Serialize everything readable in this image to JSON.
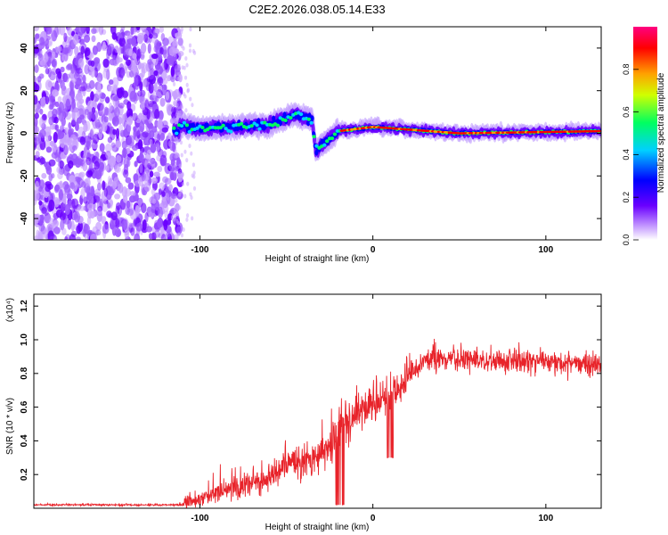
{
  "title": "C2E2.2026.038.05.14.E33",
  "chart_data": [
    {
      "type": "heatmap",
      "xlabel": "Height of straight line (km)",
      "ylabel": "Frequency (Hz)",
      "xlim": [
        -196,
        132
      ],
      "ylim": [
        -50,
        50
      ],
      "xticks": [
        -100,
        0,
        100
      ],
      "xtick_labels": [
        "-100",
        "0",
        "100"
      ],
      "yticks": [
        -40,
        -20,
        0,
        20,
        40
      ],
      "ytick_labels": [
        "-40",
        "-20",
        "0",
        "20",
        "40"
      ],
      "noise_region_x": [
        -196,
        -115
      ],
      "ridge": {
        "x_start": -115,
        "x_end": 132,
        "description_points": [
          {
            "x": -112,
            "f": 4
          },
          {
            "x": -100,
            "f": 2
          },
          {
            "x": -60,
            "f": 4
          },
          {
            "x": -45,
            "f": 9
          },
          {
            "x": -35,
            "f": 6
          },
          {
            "x": -33,
            "f": -8
          },
          {
            "x": -20,
            "f": 1
          },
          {
            "x": 0,
            "f": 3
          },
          {
            "x": 50,
            "f": 0
          },
          {
            "x": 130,
            "f": 1
          }
        ]
      },
      "colorbar": {
        "label": "Normalized spectral amplitude",
        "range": [
          0,
          1
        ],
        "ticks": [
          "0.0",
          "0.2",
          "0.4",
          "0.6",
          "0.8"
        ],
        "colormap": [
          "#ffffff",
          "#c8a0ff",
          "#6a00ff",
          "#0000ff",
          "#00d0ff",
          "#00ff60",
          "#d0ff00",
          "#ffa000",
          "#ff0000",
          "#ff0080"
        ]
      }
    },
    {
      "type": "line",
      "xlabel": "Height of straight line (km)",
      "ylabel": "SNR (10 * v/v)",
      "scale_label": "(x10⁴)",
      "xlim": [
        -196,
        132
      ],
      "ylim": [
        0,
        1.27
      ],
      "xticks": [
        -100,
        0,
        100
      ],
      "xtick_labels": [
        "-100",
        "0",
        "100"
      ],
      "yticks": [
        0.2,
        0.4,
        0.6,
        0.8,
        1.0,
        1.2
      ],
      "ytick_labels": [
        "0.2",
        "0.4",
        "0.6",
        "0.8",
        "1.0",
        "1.2"
      ],
      "color": "#e8232a",
      "series": [
        {
          "name": "SNR",
          "x": [
            -196,
            -150,
            -110,
            -100,
            -80,
            -60,
            -45,
            -35,
            -25,
            -18,
            -10,
            -5,
            0,
            10,
            20,
            30,
            50,
            70,
            100,
            132
          ],
          "values": [
            0.02,
            0.02,
            0.02,
            0.06,
            0.12,
            0.18,
            0.28,
            0.28,
            0.35,
            0.5,
            0.55,
            0.58,
            0.62,
            0.65,
            0.78,
            0.88,
            0.88,
            0.88,
            0.87,
            0.85
          ]
        }
      ]
    }
  ]
}
